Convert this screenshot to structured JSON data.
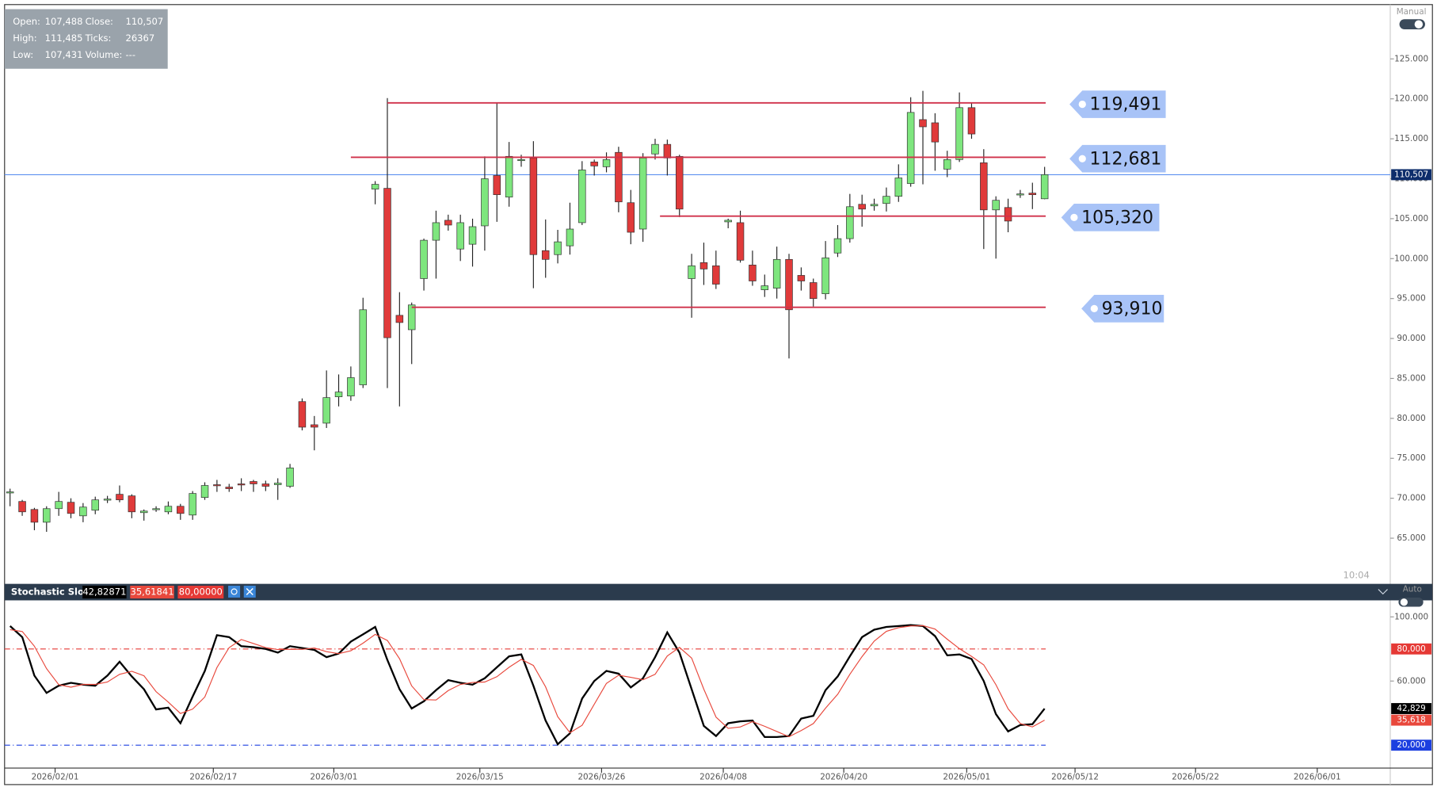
{
  "info_box": {
    "rows": [
      [
        "Open:",
        "107,488",
        "Close:",
        "110,507"
      ],
      [
        "High:",
        "111,485",
        "Ticks:",
        "26367"
      ],
      [
        "Low:",
        "107,431",
        "Volume:",
        "---"
      ]
    ]
  },
  "toggle_manual": "Manual",
  "toggle_auto": "Auto",
  "time": "10:04",
  "chart_data": [
    {
      "type": "candlestick",
      "xlim": [
        -0.45,
        113.4
      ],
      "ylim": [
        59.4,
        131.8
      ],
      "yticks": [
        {
          "value": 65,
          "label": "65.000"
        },
        {
          "value": 70,
          "label": "70.000"
        },
        {
          "value": 75,
          "label": "75.000"
        },
        {
          "value": 80,
          "label": "80.000"
        },
        {
          "value": 85,
          "label": "85.000"
        },
        {
          "value": 90,
          "label": "90.000"
        },
        {
          "value": 95,
          "label": "95.000"
        },
        {
          "value": 100,
          "label": "100.000"
        },
        {
          "value": 105,
          "label": "105.000"
        },
        {
          "value": 110,
          "label": "110.000"
        },
        {
          "value": 115,
          "label": "115.000"
        },
        {
          "value": 120,
          "label": "120.000"
        },
        {
          "value": 125,
          "label": "125.000"
        }
      ],
      "up_color": "#7ee67e",
      "down_color": "#e03a3a",
      "candles": {
        "open": [
          70.8,
          69.6,
          68.6,
          67.0,
          68.7,
          69.5,
          67.8,
          68.5,
          69.8,
          70.5,
          70.3,
          68.2,
          68.6,
          68.3,
          69.0,
          67.9,
          70.1,
          71.7,
          71.4,
          71.8,
          72.1,
          71.8,
          71.7,
          71.5,
          82.1,
          79.2,
          79.4,
          82.7,
          82.8,
          84.2,
          108.7,
          108.8,
          92.9,
          91.1,
          97.5,
          102.3,
          104.8,
          101.2,
          101.8,
          104.1,
          110.4,
          107.7,
          112.4,
          112.6,
          101.0,
          100.5,
          101.6,
          104.5,
          112.1,
          111.5,
          113.3,
          107.0,
          103.7,
          113.1,
          114.3,
          112.8,
          97.5,
          99.5,
          99.1,
          104.6,
          104.5,
          99.2,
          96.1,
          96.3,
          99.9,
          97.9,
          97.0,
          95.6,
          100.7,
          102.5,
          106.8,
          106.6,
          106.9,
          107.8,
          109.4,
          117.4,
          117.0,
          111.2,
          112.4,
          118.9,
          112.0,
          106.1,
          106.4,
          108.0,
          108.2,
          107.488
        ],
        "high": [
          71.2,
          69.8,
          68.8,
          69.0,
          70.8,
          70.0,
          69.4,
          70.2,
          70.3,
          71.6,
          70.5,
          68.6,
          69.0,
          69.6,
          69.3,
          70.9,
          72.0,
          72.3,
          71.8,
          72.5,
          72.3,
          72.2,
          72.5,
          74.3,
          82.5,
          80.3,
          86.0,
          85.5,
          86.5,
          95.1,
          109.7,
          120.1,
          95.8,
          94.5,
          102.5,
          106.0,
          105.5,
          105.5,
          105.0,
          112.8,
          119.5,
          114.6,
          113.0,
          114.7,
          104.9,
          103.6,
          107.0,
          112.2,
          112.4,
          113.3,
          114.0,
          108.6,
          113.2,
          115.0,
          114.9,
          113.0,
          100.6,
          102.0,
          101.0,
          105.0,
          106.0,
          101.0,
          98.0,
          101.5,
          100.6,
          98.9,
          97.5,
          102.2,
          104.2,
          108.1,
          108.0,
          107.5,
          108.9,
          111.8,
          120.2,
          121.0,
          118.2,
          113.5,
          120.8,
          119.5,
          113.7,
          107.8,
          107.5,
          108.6,
          109.5,
          111.485
        ],
        "low": [
          69.0,
          67.8,
          66.0,
          65.8,
          67.8,
          67.5,
          67.0,
          68.0,
          69.4,
          69.5,
          67.5,
          67.2,
          68.3,
          68.0,
          67.3,
          67.3,
          69.8,
          70.8,
          70.8,
          70.9,
          70.8,
          70.9,
          69.8,
          71.3,
          78.5,
          76.0,
          78.8,
          81.5,
          82.2,
          83.8,
          106.8,
          83.8,
          81.5,
          86.8,
          96.0,
          97.5,
          103.5,
          99.7,
          99.0,
          101.0,
          104.6,
          106.5,
          111.5,
          96.3,
          97.6,
          99.4,
          100.5,
          104.2,
          110.4,
          110.8,
          105.8,
          101.8,
          102.1,
          112.4,
          110.4,
          105.2,
          92.6,
          96.7,
          96.2,
          103.8,
          99.5,
          96.6,
          95.2,
          95.0,
          87.5,
          96.0,
          94.0,
          94.9,
          100.2,
          102.0,
          104.0,
          106.0,
          105.9,
          107.1,
          109.0,
          109.3,
          111.0,
          110.2,
          112.1,
          115.0,
          101.2,
          100.0,
          103.3,
          107.6,
          106.2,
          107.431
        ],
        "close": [
          70.8,
          68.3,
          67.0,
          68.7,
          69.6,
          68.1,
          68.9,
          69.8,
          69.9,
          69.8,
          68.3,
          68.4,
          68.7,
          69.0,
          68.1,
          70.6,
          71.6,
          71.6,
          71.2,
          71.7,
          71.8,
          71.5,
          71.9,
          73.8,
          78.9,
          78.9,
          82.6,
          83.3,
          85.1,
          93.6,
          109.3,
          90.1,
          92.0,
          94.2,
          102.3,
          104.5,
          104.2,
          104.5,
          104.0,
          110.0,
          108.0,
          112.8,
          112.4,
          100.5,
          99.9,
          102.1,
          103.7,
          111.1,
          111.6,
          112.4,
          107.1,
          103.3,
          112.6,
          114.3,
          112.6,
          106.2,
          99.1,
          98.7,
          96.8,
          104.8,
          99.8,
          97.2,
          96.6,
          99.9,
          93.6,
          97.2,
          95.0,
          100.1,
          102.5,
          106.5,
          106.2,
          106.8,
          107.8,
          110.1,
          118.3,
          116.5,
          114.6,
          112.4,
          118.9,
          115.6,
          106.1,
          107.3,
          104.7,
          108.1,
          108.0,
          110.507
        ]
      },
      "levels": [
        {
          "value": 119.491,
          "label": "119,491"
        },
        {
          "value": 112.681,
          "label": "112,681"
        },
        {
          "value": 105.32,
          "label": "105,320"
        },
        {
          "value": 93.91,
          "label": "93,910"
        }
      ],
      "level_color": "#d0314a",
      "last_price": {
        "value": 110.507,
        "label": "110,507",
        "color": "#5b8ff0"
      }
    },
    {
      "type": "line",
      "title": "Stochastic Slow",
      "xlim": [
        -0.45,
        113.4
      ],
      "ylim": [
        6.3,
        110.3
      ],
      "yticks": [
        {
          "value": 60,
          "label": "60.000"
        },
        {
          "value": 100,
          "label": "100.000"
        }
      ],
      "xticks": [
        {
          "value": 3.7,
          "label": "2026/02/01"
        },
        {
          "value": 16.7,
          "label": "2026/02/17"
        },
        {
          "value": 26.6,
          "label": "2026/03/01"
        },
        {
          "value": 38.6,
          "label": "2026/03/15"
        },
        {
          "value": 48.6,
          "label": "2026/03/26"
        },
        {
          "value": 58.6,
          "label": "2026/04/08"
        },
        {
          "value": 68.5,
          "label": "2026/04/20"
        },
        {
          "value": 78.6,
          "label": "2026/05/01"
        },
        {
          "value": 87.5,
          "label": "2026/05/12"
        },
        {
          "value": 97.4,
          "label": "2026/05/22"
        },
        {
          "value": 107.4,
          "label": "2026/06/01"
        }
      ],
      "series": [
        {
          "color": "#000000",
          "header_label": "42,82871",
          "last_label": "42,829",
          "values": [
            94.3,
            87.4,
            63.4,
            52.6,
            57.1,
            58.9,
            57.7,
            57.1,
            63.4,
            72.0,
            62.9,
            54.9,
            42.3,
            43.4,
            33.7,
            50.3,
            66.3,
            88.6,
            87.4,
            81.7,
            81.1,
            80.0,
            77.7,
            81.7,
            80.6,
            79.4,
            74.9,
            77.1,
            84.6,
            89.1,
            93.7,
            73.1,
            54.9,
            42.9,
            47.4,
            54.3,
            60.6,
            58.9,
            57.7,
            61.7,
            68.6,
            75.4,
            76.6,
            57.1,
            35.4,
            20.6,
            27.4,
            49.1,
            60.0,
            66.3,
            64.6,
            56.0,
            61.7,
            74.9,
            90.3,
            77.7,
            54.9,
            32.0,
            25.7,
            33.7,
            34.9,
            35.4,
            25.1,
            25.1,
            25.7,
            36.6,
            38.3,
            54.3,
            62.9,
            75.4,
            87.4,
            92.0,
            93.7,
            94.3,
            94.9,
            94.3,
            88.0,
            76.0,
            76.6,
            73.7,
            60.0,
            39.4,
            28.6,
            32.6,
            33.1,
            42.829
          ]
        },
        {
          "color": "#e8483c",
          "header_label": "35,61841",
          "last_label": "35,618",
          "values": [
            92,
            90.9,
            81.7,
            67.7,
            57.7,
            56.2,
            57.9,
            57.9,
            59.4,
            64.2,
            66.1,
            63.3,
            53.4,
            46.9,
            39.8,
            42.5,
            50.1,
            68.4,
            80.8,
            85.9,
            83.4,
            80.9,
            79.6,
            79.8,
            79.7,
            80.6,
            78.3,
            77.1,
            78.9,
            83.6,
            89.1,
            85.3,
            73.9,
            57.0,
            48.4,
            48.2,
            54.1,
            57.9,
            59.1,
            59.4,
            62.7,
            68.6,
            73.5,
            69.7,
            56.4,
            37.7,
            27.8,
            32.4,
            45.5,
            58.5,
            63.6,
            62.3,
            60.8,
            64.2,
            75.6,
            81.0,
            74.3,
            54.9,
            37.5,
            30.5,
            31.4,
            34.7,
            31.8,
            28.5,
            25.3,
            29.1,
            33.5,
            43.1,
            51.8,
            64.2,
            75.2,
            84.9,
            91.0,
            93.3,
            94.3,
            94.5,
            92.4,
            86.1,
            80.2,
            75.4,
            70.1,
            57.7,
            42.7,
            33.5,
            31.4,
            35.618
          ]
        }
      ],
      "levels": [
        {
          "value": 80,
          "label": "80,000",
          "header_label": "80,00000",
          "color": "#e53935"
        },
        {
          "value": 20,
          "label": "20,000",
          "color": "#1c3fe0"
        }
      ]
    }
  ]
}
